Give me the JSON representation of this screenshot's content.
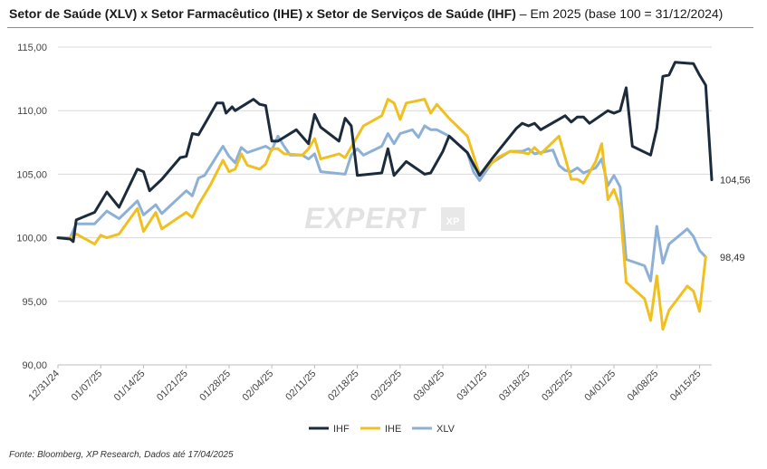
{
  "title": {
    "bold": "Setor de Saúde (XLV) x Setor Farmacêutico (IHE) x Setor de Serviços de Saúde (IHF)",
    "rest": " – Em 2025 (base 100 = 31/12/2024)"
  },
  "source": "Fonte: Bloomberg, XP Research, Dados até 17/04/2025",
  "watermark": "EXPERT",
  "watermark_suffix": "XP",
  "chart_data": {
    "type": "line",
    "title": "Setor de Saúde (XLV) x Setor Farmacêutico (IHE) x Setor de Serviços de Saúde (IHF) – Em 2025 (base 100 = 31/12/2024)",
    "xlabel": "",
    "ylabel": "",
    "ylim": [
      90,
      115
    ],
    "yticks": [
      "90,00",
      "95,00",
      "100,00",
      "105,00",
      "110,00",
      "115,00"
    ],
    "ytick_values": [
      90,
      95,
      100,
      105,
      110,
      115
    ],
    "xticks": [
      "12/31/24",
      "01/07/25",
      "01/14/25",
      "01/21/25",
      "01/28/25",
      "02/04/25",
      "02/11/25",
      "02/18/25",
      "02/25/25",
      "03/04/25",
      "03/11/25",
      "03/18/25",
      "03/25/25",
      "04/01/25",
      "04/08/25",
      "04/15/25"
    ],
    "xtick_days": [
      0,
      7,
      14,
      21,
      28,
      35,
      42,
      49,
      56,
      63,
      70,
      77,
      84,
      91,
      98,
      105
    ],
    "x_range_days": [
      0,
      107
    ],
    "legend_position": "bottom-center",
    "gridlines": "horizontal",
    "series": [
      {
        "name": "IHF",
        "color": "#1c2b3c",
        "end_label": "104,56",
        "points": [
          [
            0,
            100
          ],
          [
            2,
            99.9
          ],
          [
            2.5,
            99.7
          ],
          [
            3,
            101.4
          ],
          [
            6,
            102
          ],
          [
            8,
            103.6
          ],
          [
            10,
            102.4
          ],
          [
            13,
            105.4
          ],
          [
            14,
            105.2
          ],
          [
            15,
            103.7
          ],
          [
            17,
            104.6
          ],
          [
            20,
            106.3
          ],
          [
            21,
            106.4
          ],
          [
            22,
            108.2
          ],
          [
            23,
            108.1
          ],
          [
            26,
            110.6
          ],
          [
            27,
            110.6
          ],
          [
            27.5,
            109.8
          ],
          [
            28.5,
            110.3
          ],
          [
            29,
            110
          ],
          [
            31,
            110.6
          ],
          [
            32,
            110.9
          ],
          [
            33,
            110.5
          ],
          [
            34,
            110.4
          ],
          [
            35,
            107.6
          ],
          [
            36,
            107.6
          ],
          [
            39,
            108.5
          ],
          [
            41,
            107.4
          ],
          [
            42,
            109.7
          ],
          [
            43,
            108.7
          ],
          [
            46,
            107.6
          ],
          [
            47,
            109.4
          ],
          [
            48,
            108.8
          ],
          [
            49,
            104.9
          ],
          [
            53,
            105.1
          ],
          [
            54,
            107
          ],
          [
            55,
            104.9
          ],
          [
            57,
            106
          ],
          [
            60,
            105
          ],
          [
            61,
            105.1
          ],
          [
            63,
            106.8
          ],
          [
            64,
            108
          ],
          [
            67,
            106.7
          ],
          [
            68,
            105.8
          ],
          [
            69,
            104.9
          ],
          [
            71,
            106.2
          ],
          [
            75,
            108.6
          ],
          [
            76,
            109
          ],
          [
            77,
            108.8
          ],
          [
            78,
            109
          ],
          [
            79,
            108.5
          ],
          [
            83,
            109.6
          ],
          [
            84,
            109.1
          ],
          [
            85,
            109.5
          ],
          [
            86,
            109.5
          ],
          [
            87,
            109
          ],
          [
            90,
            110
          ],
          [
            91,
            109.8
          ],
          [
            92,
            110
          ],
          [
            93,
            111.8
          ],
          [
            94,
            107.2
          ],
          [
            97,
            106.5
          ],
          [
            98,
            108.6
          ],
          [
            99,
            112.7
          ],
          [
            100,
            112.8
          ],
          [
            101,
            113.8
          ],
          [
            104,
            113.7
          ],
          [
            105,
            112.8
          ],
          [
            106,
            112
          ],
          [
            107,
            104.56
          ]
        ]
      },
      {
        "name": "IHE",
        "color": "#f0c020",
        "end_label": "98,49",
        "points": [
          [
            0,
            100
          ],
          [
            2,
            100
          ],
          [
            3,
            100.3
          ],
          [
            6,
            99.5
          ],
          [
            7,
            100.2
          ],
          [
            8,
            100
          ],
          [
            10,
            100.3
          ],
          [
            13,
            102.3
          ],
          [
            14,
            100.5
          ],
          [
            16,
            102
          ],
          [
            17,
            100.7
          ],
          [
            21,
            102
          ],
          [
            22,
            101.6
          ],
          [
            23,
            102.6
          ],
          [
            25,
            104.2
          ],
          [
            27,
            106.1
          ],
          [
            28,
            105.2
          ],
          [
            29,
            105.4
          ],
          [
            30,
            106.6
          ],
          [
            31,
            105.7
          ],
          [
            33,
            105.4
          ],
          [
            34,
            105.8
          ],
          [
            35,
            107
          ],
          [
            36,
            107
          ],
          [
            37,
            106.6
          ],
          [
            40,
            106.5
          ],
          [
            41,
            107
          ],
          [
            42,
            107.8
          ],
          [
            43,
            106.2
          ],
          [
            46,
            106.6
          ],
          [
            47,
            106.3
          ],
          [
            50,
            108.8
          ],
          [
            53,
            109.6
          ],
          [
            54,
            110.9
          ],
          [
            55,
            110.6
          ],
          [
            56,
            109.3
          ],
          [
            57,
            110.6
          ],
          [
            60,
            110.9
          ],
          [
            61,
            109.8
          ],
          [
            62,
            110.5
          ],
          [
            64,
            109.4
          ],
          [
            67,
            108
          ],
          [
            68,
            106.5
          ],
          [
            69,
            105
          ],
          [
            72,
            106.3
          ],
          [
            74,
            106.8
          ],
          [
            76,
            106.7
          ],
          [
            77,
            106.6
          ],
          [
            78,
            107.1
          ],
          [
            79,
            106.6
          ],
          [
            82,
            108
          ],
          [
            83,
            106.3
          ],
          [
            84,
            104.6
          ],
          [
            85,
            104.6
          ],
          [
            86,
            104.3
          ],
          [
            88,
            106
          ],
          [
            89,
            107.4
          ],
          [
            90,
            103
          ],
          [
            91,
            103.8
          ],
          [
            92,
            102.4
          ],
          [
            93,
            96.5
          ],
          [
            96,
            95.2
          ],
          [
            97,
            93.5
          ],
          [
            98,
            97
          ],
          [
            99,
            92.8
          ],
          [
            100,
            94.3
          ],
          [
            103,
            96.2
          ],
          [
            104,
            95.8
          ],
          [
            105,
            94.2
          ],
          [
            106,
            98.49
          ]
        ]
      },
      {
        "name": "XLV",
        "color": "#8db0d6",
        "end_label": "",
        "points": [
          [
            0,
            100
          ],
          [
            2,
            100
          ],
          [
            3,
            101.1
          ],
          [
            6,
            101.1
          ],
          [
            8,
            102.1
          ],
          [
            10,
            101.5
          ],
          [
            13,
            102.9
          ],
          [
            14,
            101.8
          ],
          [
            16,
            102.6
          ],
          [
            17,
            101.9
          ],
          [
            21,
            103.7
          ],
          [
            22,
            103.3
          ],
          [
            23,
            104.7
          ],
          [
            24,
            104.9
          ],
          [
            27,
            107.2
          ],
          [
            28,
            106.4
          ],
          [
            29,
            105.9
          ],
          [
            30,
            107.1
          ],
          [
            31,
            106.7
          ],
          [
            34,
            107.2
          ],
          [
            35,
            106.9
          ],
          [
            36,
            108
          ],
          [
            37,
            107.2
          ],
          [
            38,
            106.5
          ],
          [
            40,
            106.5
          ],
          [
            41,
            106.2
          ],
          [
            42,
            106.6
          ],
          [
            43,
            105.2
          ],
          [
            47,
            105
          ],
          [
            48,
            106.5
          ],
          [
            49,
            107
          ],
          [
            50,
            106.5
          ],
          [
            53,
            107.2
          ],
          [
            54,
            108.2
          ],
          [
            55,
            107.4
          ],
          [
            56,
            108.2
          ],
          [
            58,
            108.5
          ],
          [
            59,
            107.9
          ],
          [
            60,
            108.8
          ],
          [
            61,
            108.5
          ],
          [
            62,
            108.5
          ],
          [
            64,
            108
          ],
          [
            67,
            106.7
          ],
          [
            68,
            105.2
          ],
          [
            69,
            104.5
          ],
          [
            71,
            105.9
          ],
          [
            74,
            106.8
          ],
          [
            76,
            106.8
          ],
          [
            77,
            107
          ],
          [
            78,
            106.6
          ],
          [
            81,
            106.9
          ],
          [
            82,
            105.7
          ],
          [
            83,
            105.3
          ],
          [
            84,
            105.2
          ],
          [
            85,
            105.5
          ],
          [
            86,
            105.1
          ],
          [
            88,
            105.5
          ],
          [
            89,
            106.2
          ],
          [
            90,
            104.1
          ],
          [
            91,
            104.9
          ],
          [
            92,
            104
          ],
          [
            93,
            98.3
          ],
          [
            96,
            97.8
          ],
          [
            97,
            96.6
          ],
          [
            98,
            100.9
          ],
          [
            99,
            98
          ],
          [
            100,
            99.5
          ],
          [
            103,
            100.7
          ],
          [
            104,
            100.1
          ],
          [
            105,
            99
          ],
          [
            106,
            98.49
          ]
        ]
      }
    ]
  }
}
